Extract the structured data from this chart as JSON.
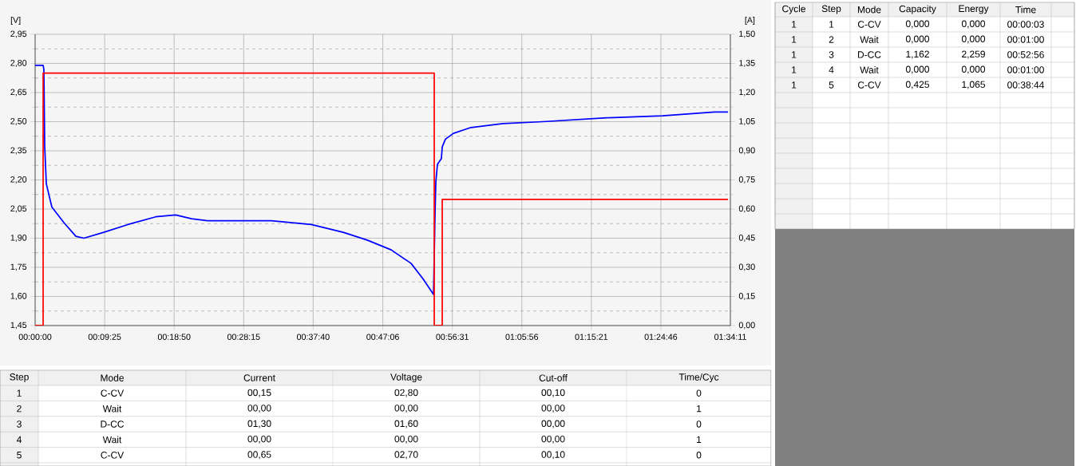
{
  "chart_data": [
    {
      "type": "line",
      "ylabel": "[V]",
      "y2label": "[A]",
      "xlim": [
        0,
        5651
      ],
      "xticks": [
        {
          "value": 0,
          "label": "00:00:00"
        },
        {
          "value": 565,
          "label": "00:09:25"
        },
        {
          "value": 1130,
          "label": "00:18:50"
        },
        {
          "value": 1695,
          "label": "00:28:15"
        },
        {
          "value": 2260,
          "label": "00:37:40"
        },
        {
          "value": 2826,
          "label": "00:47:06"
        },
        {
          "value": 3391,
          "label": "00:56:31"
        },
        {
          "value": 3956,
          "label": "01:05:56"
        },
        {
          "value": 4521,
          "label": "01:15:21"
        },
        {
          "value": 5086,
          "label": "01:24:46"
        },
        {
          "value": 5651,
          "label": "01:34:11"
        }
      ],
      "ylim": [
        1.45,
        2.95
      ],
      "yticks": [
        {
          "value": 1.45,
          "label": "1,45"
        },
        {
          "value": 1.6,
          "label": "1,60"
        },
        {
          "value": 1.75,
          "label": "1,75"
        },
        {
          "value": 1.9,
          "label": "1,90"
        },
        {
          "value": 2.05,
          "label": "2,05"
        },
        {
          "value": 2.2,
          "label": "2,20"
        },
        {
          "value": 2.35,
          "label": "2,35"
        },
        {
          "value": 2.5,
          "label": "2,50"
        },
        {
          "value": 2.65,
          "label": "2,65"
        },
        {
          "value": 2.8,
          "label": "2,80"
        },
        {
          "value": 2.95,
          "label": "2,95"
        }
      ],
      "y2lim": [
        0,
        1.5
      ],
      "y2ticks": [
        {
          "value": 0,
          "label": "0,00"
        },
        {
          "value": 0.15,
          "label": "0,15"
        },
        {
          "value": 0.3,
          "label": "0,30"
        },
        {
          "value": 0.45,
          "label": "0,45"
        },
        {
          "value": 0.6,
          "label": "0,60"
        },
        {
          "value": 0.75,
          "label": "0,75"
        },
        {
          "value": 0.9,
          "label": "0,90"
        },
        {
          "value": 1.05,
          "label": "1,05"
        },
        {
          "value": 1.2,
          "label": "1,20"
        },
        {
          "value": 1.35,
          "label": "1,35"
        },
        {
          "value": 1.5,
          "label": "1,50"
        }
      ],
      "grid": true,
      "marker": "none",
      "line_style": "solid",
      "series": [
        {
          "color": "#0000ff",
          "axis": "y",
          "x": [
            0,
            65,
            71,
            78,
            91,
            136,
            234,
            331,
            396,
            558,
            753,
            980,
            1142,
            1272,
            1401,
            1661,
            1920,
            2245,
            2504,
            2699,
            2894,
            3056,
            3153,
            3238,
            3251,
            3257,
            3270,
            3302,
            3309,
            3335,
            3400,
            3542,
            3802,
            4126,
            4645,
            5100,
            5521,
            5632
          ],
          "values": [
            2.79,
            2.79,
            2.77,
            2.37,
            2.18,
            2.06,
            1.98,
            1.91,
            1.9,
            1.93,
            1.97,
            2.01,
            2.02,
            2.0,
            1.99,
            1.99,
            1.99,
            1.97,
            1.93,
            1.89,
            1.84,
            1.77,
            1.69,
            1.61,
            2.04,
            2.19,
            2.28,
            2.31,
            2.37,
            2.41,
            2.44,
            2.47,
            2.49,
            2.5,
            2.52,
            2.53,
            2.55,
            2.55
          ]
        },
        {
          "color": "#ff0000",
          "axis": "y2",
          "x": [
            0,
            65,
            65,
            3244,
            3244,
            3309,
            3309,
            5632
          ],
          "values": [
            0,
            0,
            1.3,
            1.3,
            0,
            0,
            0.65,
            0.65
          ]
        }
      ]
    },
    {
      "type": "heatmap",
      "ylabel": "Step",
      "categories": [
        "Mode",
        "Current",
        "Voltage",
        "Cut-off",
        "Time/Cyc"
      ],
      "y_categories": [
        "1",
        "2",
        "3",
        "4",
        "5"
      ],
      "cells": [
        [
          null,
          null,
          null,
          null,
          null
        ],
        [
          null,
          null,
          null,
          null,
          null
        ],
        [
          null,
          null,
          null,
          null,
          null
        ],
        [
          null,
          null,
          null,
          null,
          null
        ],
        [
          null,
          null,
          null,
          null,
          null
        ]
      ],
      "cell_labels": [
        [
          "C-CV",
          "00,15",
          "02,80",
          "00,10",
          "0"
        ],
        [
          "Wait",
          "00,00",
          "00,00",
          "00,00",
          "1"
        ],
        [
          "D-CC",
          "01,30",
          "01,60",
          "00,00",
          "0"
        ],
        [
          "Wait",
          "00,00",
          "00,00",
          "00,00",
          "1"
        ],
        [
          "C-CV",
          "00,65",
          "02,70",
          "00,10",
          "0"
        ]
      ]
    },
    {
      "type": "heatmap",
      "ylabel": "Step",
      "categories": [
        "Cycle",
        "Mode",
        "Capacity",
        "Energy",
        "Time"
      ],
      "y_categories": [
        "1",
        "2",
        "3",
        "4",
        "5"
      ],
      "cells": [
        [
          null,
          null,
          null,
          null,
          null
        ],
        [
          null,
          null,
          null,
          null,
          null
        ],
        [
          null,
          null,
          null,
          null,
          null
        ],
        [
          null,
          null,
          null,
          null,
          null
        ],
        [
          null,
          null,
          null,
          null,
          null
        ]
      ],
      "cell_labels": [
        [
          "1",
          "C-CV",
          "0,000",
          "0,000",
          "00:00:03"
        ],
        [
          "1",
          "Wait",
          "0,000",
          "0,000",
          "00:01:00"
        ],
        [
          "1",
          "D-CC",
          "1,162",
          "2,259",
          "00:52:56"
        ],
        [
          "1",
          "Wait",
          "0,000",
          "0,000",
          "00:01:00"
        ],
        [
          "1",
          "C-CV",
          "0,425",
          "1,065",
          "00:38:44"
        ]
      ]
    }
  ]
}
